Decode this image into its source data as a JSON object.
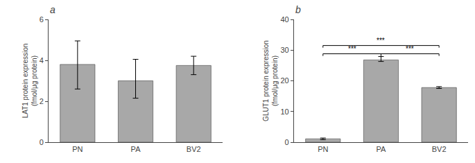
{
  "chart_data": [
    {
      "type": "bar",
      "title": "a",
      "categories": [
        "PN",
        "PA",
        "BV2"
      ],
      "values": [
        3.8,
        3.0,
        3.75
      ],
      "error_pos": [
        1.15,
        1.05,
        0.45
      ],
      "error_neg": [
        1.2,
        0.85,
        0.45
      ],
      "ylabel": "LAT1 protein expression\n(fmol/μg protein)",
      "ylim": [
        0,
        6
      ],
      "yticks": [
        0,
        2,
        4,
        6
      ],
      "color": "#a8a8a8",
      "grid": false
    },
    {
      "type": "bar",
      "title": "b",
      "categories": [
        "PN",
        "PA",
        "BV2"
      ],
      "values": [
        1.1,
        26.8,
        17.8
      ],
      "error_pos": [
        0.25,
        1.1,
        0.3
      ],
      "error_neg": [
        0.25,
        0.5,
        0.3
      ],
      "ylabel": "GLUT1 protein expression\n(fmol/μg protein)",
      "ylim": [
        0,
        40
      ],
      "yticks": [
        0,
        10,
        20,
        30,
        40
      ],
      "color": "#a8a8a8",
      "grid": false,
      "annotations": [
        {
          "text": "***",
          "x1": "PN",
          "x2": "PA",
          "y": 28.8
        },
        {
          "text": "***",
          "x1": "PA",
          "x2": "BV2",
          "y": 28.8
        },
        {
          "text": "***",
          "x1": "PN",
          "x2": "BV2",
          "y": 31.5
        }
      ]
    }
  ]
}
